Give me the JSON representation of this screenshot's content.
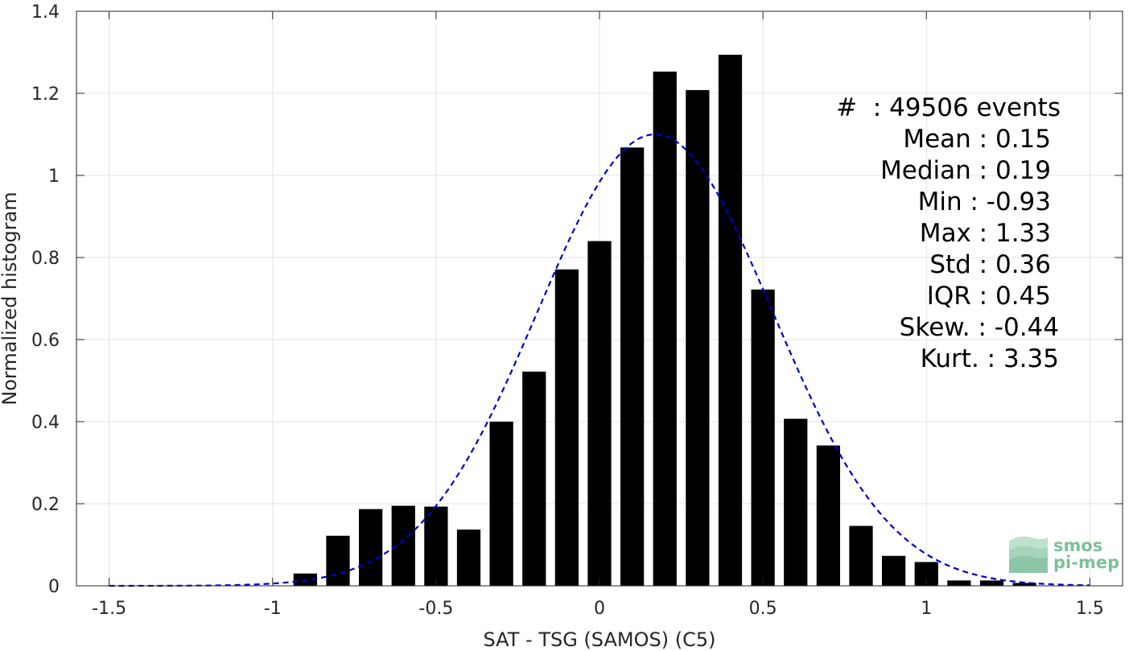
{
  "chart_data": {
    "type": "bar",
    "xlabel": "SAT - TSG (SAMOS) (C5)",
    "ylabel": "Normalized histogram",
    "xlim": [
      -1.6,
      1.6
    ],
    "ylim": [
      0,
      1.4
    ],
    "xticks": [
      -1.5,
      -1,
      -0.5,
      0,
      0.5,
      1,
      1.5
    ],
    "xtick_labels": [
      "-1.5",
      "-1",
      "-0.5",
      "0",
      "0.5",
      "1",
      "1.5"
    ],
    "yticks": [
      0,
      0.2,
      0.4,
      0.6,
      0.8,
      1,
      1.2,
      1.4
    ],
    "ytick_labels": [
      "0",
      "0.2",
      "0.4",
      "0.6",
      "0.8",
      "1",
      "1.2",
      "1.4"
    ],
    "grid": true,
    "bar_color": "#000000",
    "bar_width": 0.072,
    "bins": [
      -0.9,
      -0.8,
      -0.7,
      -0.6,
      -0.5,
      -0.4,
      -0.3,
      -0.2,
      -0.1,
      0.0,
      0.1,
      0.2,
      0.3,
      0.4,
      0.5,
      0.6,
      0.7,
      0.8,
      0.9,
      1.0,
      1.1,
      1.2,
      1.3
    ],
    "values": [
      0.03,
      0.122,
      0.187,
      0.195,
      0.193,
      0.137,
      0.4,
      0.522,
      0.771,
      0.84,
      1.068,
      1.253,
      1.208,
      1.294,
      0.722,
      0.407,
      0.342,
      0.146,
      0.073,
      0.058,
      0.013,
      0.013,
      0.007
    ],
    "fit": {
      "type": "gaussian",
      "style": "dashed",
      "color": "#0000cc",
      "mean": 0.17,
      "std": 0.36,
      "peak": 1.1,
      "x_range": [
        -1.5,
        1.5
      ]
    },
    "stats_box": {
      "position": "top-right",
      "lines": [
        "#  : 49506 events",
        "Mean : 0.15",
        "Median : 0.19",
        "Min : -0.93",
        "Max : 1.33",
        "Std : 0.36",
        "IQR : 0.45",
        "Skew. : -0.44",
        "Kurt. : 3.35"
      ]
    }
  },
  "logo": {
    "line1": "smos",
    "line2": "pi-mep",
    "color": "#7fbf9a"
  }
}
